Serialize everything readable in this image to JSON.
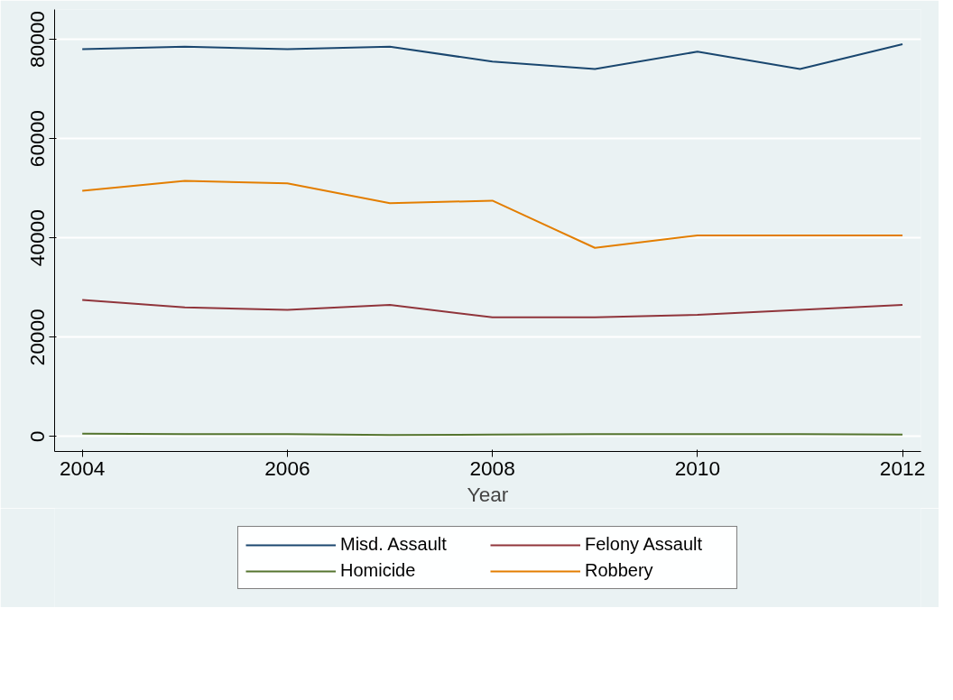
{
  "chart_data": {
    "type": "line",
    "xlabel": "Year",
    "x": [
      2004,
      2005,
      2006,
      2007,
      2008,
      2009,
      2010,
      2011,
      2012
    ],
    "series": [
      {
        "name": "Misd. Assault",
        "color": "#1a476f",
        "values": [
          78000,
          78500,
          78000,
          78500,
          75500,
          74000,
          77500,
          74000,
          79000
        ]
      },
      {
        "name": "Felony Assault",
        "color": "#90353b",
        "values": [
          27500,
          26000,
          25500,
          26500,
          24000,
          24000,
          24500,
          25500,
          26500
        ]
      },
      {
        "name": "Homicide",
        "color": "#55752f",
        "values": [
          600,
          500,
          500,
          300,
          400,
          500,
          500,
          500,
          400
        ]
      },
      {
        "name": "Robbery",
        "color": "#e37e00",
        "values": [
          49500,
          51500,
          51000,
          47000,
          47500,
          38000,
          40500,
          40500,
          40500
        ]
      }
    ],
    "xlim": [
      2003.73,
      2012.18
    ],
    "ylim": [
      -3000,
      86000
    ],
    "xticks": [
      2004,
      2006,
      2008,
      2010,
      2012
    ],
    "yticks": [
      0,
      20000,
      40000,
      60000,
      80000
    ],
    "grid": "y",
    "legend": "bottom",
    "marker": "none",
    "line_style": "solid"
  }
}
